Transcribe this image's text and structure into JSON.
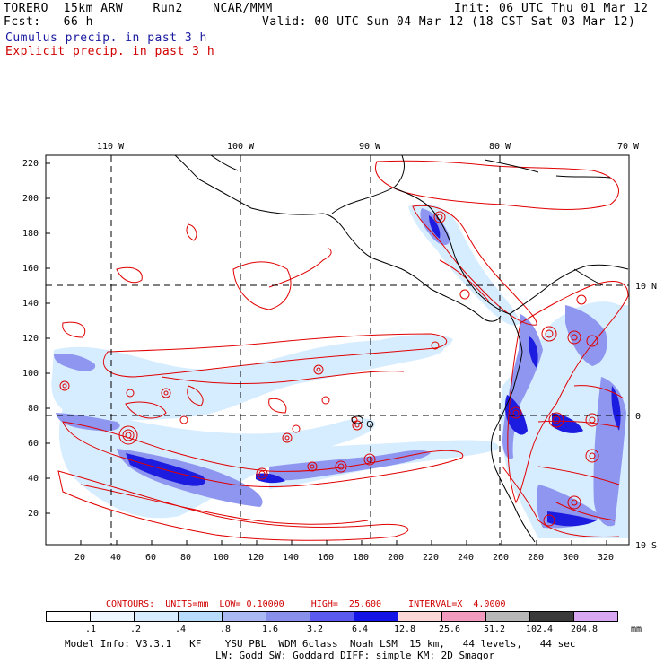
{
  "header": {
    "line1_left": "TORERO  15km ARW    Run2    NCAR/MMM",
    "line1_right": "Init: 06 UTC Thu 01 Mar 12",
    "line2_left": "Fcst:   66 h",
    "line2_right": "Valid: 00 UTC Sun 04 Mar 12 (18 CST Sat 03 Mar 12)",
    "cumulus": "Cumulus precip. in past 3 h",
    "explicit": "Explicit precip. in past 3 h"
  },
  "map": {
    "top_lon_labels": [
      "110 W",
      "100 W",
      "90 W",
      "80 W",
      "70 W"
    ],
    "right_lat_labels": [
      "10 N",
      "0",
      "10 S"
    ],
    "left_ticks": [
      "220",
      "200",
      "180",
      "160",
      "140",
      "120",
      "100",
      "80",
      "60",
      "40",
      "20"
    ],
    "bottom_ticks": [
      "20",
      "40",
      "60",
      "80",
      "100",
      "120",
      "140",
      "160",
      "180",
      "200",
      "220",
      "240",
      "260",
      "280",
      "300",
      "320"
    ],
    "colors": {
      "coast": "#000000",
      "explicit_contour": "#e00000",
      "cumulus_light": "#d6ecff",
      "cumulus_mid": "#8e96f0",
      "cumulus_dark": "#1c1ce0"
    }
  },
  "legend": {
    "contours_text": "CONTOURS:  UNITS=mm  LOW= 0.10000     HIGH=  25.600     INTERVAL=X  4.0000",
    "labels": [
      ".1",
      ".2",
      ".4",
      ".8",
      "1.6",
      "3.2",
      "6.4",
      "12.8",
      "25.6",
      "51.2",
      "102.4",
      "204.8"
    ],
    "unit": "mm",
    "colors": [
      "#ffffff",
      "#eef7ff",
      "#d8ecff",
      "#b8dcfc",
      "#aab8f4",
      "#8890ec",
      "#5a5af0",
      "#1414e6",
      "#fbd7d7",
      "#f29bbf",
      "#b7b7b7",
      "#3a3a3a",
      "#d8a8f2"
    ]
  },
  "footer": {
    "line1": "Model Info: V3.3.1   KF    YSU PBL  WDM 6class  Noah LSM  15 km,   44 levels,   44 sec",
    "line2": "LW: Godd SW: Goddard DIFF: simple KM: 2D Smagor"
  }
}
